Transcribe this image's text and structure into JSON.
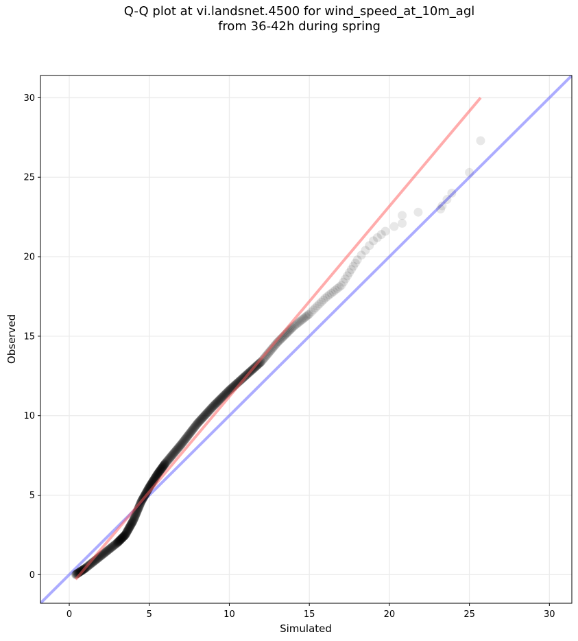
{
  "title": {
    "line1": "Q-Q plot at vi.landsnet.4500 for wind_speed_at_10m_agl",
    "line2": "from 36-42h during spring"
  },
  "chart_data": {
    "type": "scatter",
    "title": "Q-Q plot at vi.landsnet.4500 for wind_speed_at_10m_agl from 36-42h during spring",
    "xlabel": "Simulated",
    "ylabel": "Observed",
    "xlim": [
      -1.8,
      31.4
    ],
    "ylim": [
      -1.8,
      31.4
    ],
    "xticks": [
      0,
      5,
      10,
      15,
      20,
      25,
      30
    ],
    "yticks": [
      0,
      5,
      10,
      15,
      20,
      25,
      30
    ],
    "grid": true,
    "quantile_knots": [
      [
        0.4,
        0.0
      ],
      [
        1.0,
        0.4
      ],
      [
        2.0,
        1.2
      ],
      [
        3.0,
        2.0
      ],
      [
        3.5,
        2.5
      ],
      [
        4.0,
        3.4
      ],
      [
        4.5,
        4.6
      ],
      [
        5.0,
        5.5
      ],
      [
        5.5,
        6.3
      ],
      [
        6.0,
        7.0
      ],
      [
        7.0,
        8.2
      ],
      [
        8.0,
        9.5
      ],
      [
        9.0,
        10.6
      ],
      [
        10.0,
        11.6
      ],
      [
        11.0,
        12.5
      ],
      [
        12.0,
        13.4
      ],
      [
        13.0,
        14.6
      ],
      [
        14.0,
        15.6
      ],
      [
        15.0,
        16.4
      ],
      [
        16.0,
        17.4
      ],
      [
        17.0,
        18.2
      ],
      [
        18.0,
        19.8
      ],
      [
        19.0,
        21.0
      ],
      [
        20.0,
        21.8
      ]
    ],
    "tail_points": [
      [
        20.3,
        21.9
      ],
      [
        20.8,
        22.1
      ],
      [
        20.8,
        22.6
      ],
      [
        21.8,
        22.8
      ],
      [
        23.2,
        23.0
      ],
      [
        23.3,
        23.2
      ],
      [
        23.6,
        23.6
      ],
      [
        23.9,
        24.0
      ],
      [
        25.0,
        25.3
      ],
      [
        25.7,
        27.3
      ]
    ],
    "series": [
      {
        "type": "regression-line",
        "color": "#ff5a5a",
        "x": [
          0.4,
          25.7
        ],
        "y": [
          -0.3,
          30.0
        ]
      },
      {
        "type": "identity-line",
        "color": "#5a5aff",
        "x": [
          -1.8,
          31.4
        ],
        "y": [
          -1.8,
          31.4
        ]
      }
    ]
  }
}
